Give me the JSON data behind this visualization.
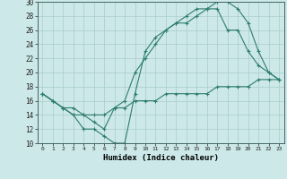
{
  "line1_x": [
    0,
    1,
    2,
    3,
    4,
    5,
    6,
    7,
    8,
    9,
    10,
    11,
    12,
    13,
    14,
    15,
    16,
    17,
    18,
    19,
    20,
    21,
    22,
    23
  ],
  "line1_y": [
    17,
    16,
    15,
    14,
    12,
    12,
    11,
    10,
    10,
    17,
    23,
    25,
    26,
    27,
    28,
    29,
    29,
    30,
    30,
    29,
    27,
    23,
    20,
    19
  ],
  "line2_x": [
    0,
    1,
    2,
    3,
    4,
    5,
    6,
    7,
    8,
    9,
    10,
    11,
    12,
    13,
    14,
    15,
    16,
    17,
    18,
    19,
    20,
    21,
    22,
    23
  ],
  "line2_y": [
    17,
    16,
    15,
    14,
    14,
    13,
    12,
    15,
    16,
    20,
    22,
    24,
    26,
    27,
    27,
    28,
    29,
    29,
    26,
    26,
    23,
    21,
    20,
    19
  ],
  "line3_x": [
    0,
    1,
    2,
    3,
    4,
    5,
    6,
    7,
    8,
    9,
    10,
    11,
    12,
    13,
    14,
    15,
    16,
    17,
    18,
    19,
    20,
    21,
    22,
    23
  ],
  "line3_y": [
    17,
    16,
    15,
    15,
    14,
    14,
    14,
    15,
    15,
    16,
    16,
    16,
    17,
    17,
    17,
    17,
    17,
    18,
    18,
    18,
    18,
    19,
    19,
    19
  ],
  "line_color": "#2e7d6e",
  "bg_color": "#cce8e8",
  "grid_color": "#aacccc",
  "xlabel": "Humidex (Indice chaleur)",
  "ylim": [
    10,
    30
  ],
  "xlim": [
    -0.5,
    23.5
  ],
  "yticks": [
    10,
    12,
    14,
    16,
    18,
    20,
    22,
    24,
    26,
    28,
    30
  ],
  "xticks": [
    0,
    1,
    2,
    3,
    4,
    5,
    6,
    7,
    8,
    9,
    10,
    11,
    12,
    13,
    14,
    15,
    16,
    17,
    18,
    19,
    20,
    21,
    22,
    23
  ],
  "marker": "+",
  "markersize": 3.5,
  "linewidth": 0.8
}
